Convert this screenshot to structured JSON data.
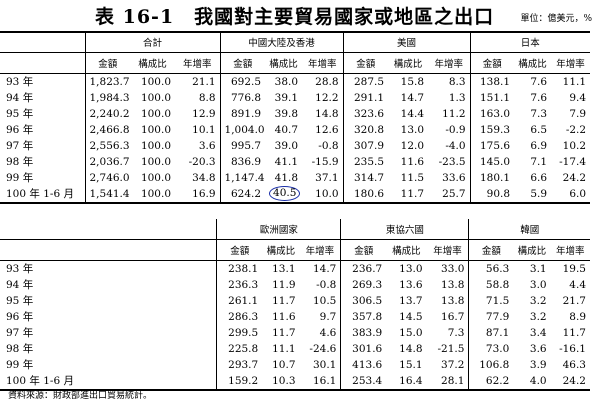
{
  "title": {
    "text": "表 16-1　我國對主要貿易國家或地區之出口",
    "unit": "單位：億美元，%"
  },
  "top": {
    "groups": [
      "合計",
      "中國大陸及香港",
      "美國",
      "日本"
    ],
    "sub": [
      "金額",
      "構成比",
      "年增率"
    ],
    "rows": [
      {
        "label": "93 年",
        "v": [
          "1,823.7",
          "100.0",
          "21.1",
          "692.5",
          "38.0",
          "28.8",
          "287.5",
          "15.8",
          "8.3",
          "138.1",
          "7.6",
          "11.1"
        ]
      },
      {
        "label": "94 年",
        "v": [
          "1,984.3",
          "100.0",
          "8.8",
          "776.8",
          "39.1",
          "12.2",
          "291.1",
          "14.7",
          "1.3",
          "151.1",
          "7.6",
          "9.4"
        ]
      },
      {
        "label": "95 年",
        "v": [
          "2,240.2",
          "100.0",
          "12.9",
          "891.9",
          "39.8",
          "14.8",
          "323.6",
          "14.4",
          "11.2",
          "163.0",
          "7.3",
          "7.9"
        ]
      },
      {
        "label": "96 年",
        "v": [
          "2,466.8",
          "100.0",
          "10.1",
          "1,004.0",
          "40.7",
          "12.6",
          "320.8",
          "13.0",
          "-0.9",
          "159.3",
          "6.5",
          "-2.2"
        ]
      },
      {
        "label": "97 年",
        "v": [
          "2,556.3",
          "100.0",
          "3.6",
          "995.7",
          "39.0",
          "-0.8",
          "307.9",
          "12.0",
          "-4.0",
          "175.6",
          "6.9",
          "10.2"
        ]
      },
      {
        "label": "98 年",
        "v": [
          "2,036.7",
          "100.0",
          "-20.3",
          "836.9",
          "41.1",
          "-15.9",
          "235.5",
          "11.6",
          "-23.5",
          "145.0",
          "7.1",
          "-17.4"
        ]
      },
      {
        "label": "99 年",
        "v": [
          "2,746.0",
          "100.0",
          "34.8",
          "1,147.4",
          "41.8",
          "37.1",
          "314.7",
          "11.5",
          "33.6",
          "180.1",
          "6.6",
          "24.2"
        ]
      },
      {
        "label": "100 年 1-6 月",
        "v": [
          "1,541.4",
          "100.0",
          "16.9",
          "624.2",
          "40.5",
          "10.0",
          "180.6",
          "11.7",
          "25.7",
          "90.8",
          "5.9",
          "6.0"
        ]
      }
    ]
  },
  "bottom": {
    "groups": [
      "歐洲國家",
      "東協六國",
      "韓國"
    ],
    "sub": [
      "金額",
      "構成比",
      "年增率"
    ],
    "rows": [
      {
        "label": "93 年",
        "v": [
          "238.1",
          "13.1",
          "14.7",
          "236.7",
          "13.0",
          "33.0",
          "56.3",
          "3.1",
          "19.5"
        ]
      },
      {
        "label": "94 年",
        "v": [
          "236.3",
          "11.9",
          "-0.8",
          "269.3",
          "13.6",
          "13.8",
          "58.8",
          "3.0",
          "4.4"
        ]
      },
      {
        "label": "95 年",
        "v": [
          "261.1",
          "11.7",
          "10.5",
          "306.5",
          "13.7",
          "13.8",
          "71.5",
          "3.2",
          "21.7"
        ]
      },
      {
        "label": "96 年",
        "v": [
          "286.3",
          "11.6",
          "9.7",
          "357.8",
          "14.5",
          "16.7",
          "77.9",
          "3.2",
          "8.9"
        ]
      },
      {
        "label": "97 年",
        "v": [
          "299.5",
          "11.7",
          "4.6",
          "383.9",
          "15.0",
          "7.3",
          "87.1",
          "3.4",
          "11.7"
        ]
      },
      {
        "label": "98 年",
        "v": [
          "225.8",
          "11.1",
          "-24.6",
          "301.6",
          "14.8",
          "-21.5",
          "73.0",
          "3.6",
          "-16.1"
        ]
      },
      {
        "label": "99 年",
        "v": [
          "293.7",
          "10.7",
          "30.1",
          "413.6",
          "15.1",
          "37.2",
          "106.8",
          "3.9",
          "46.3"
        ]
      },
      {
        "label": "100 年 1-6 月",
        "v": [
          "159.2",
          "10.3",
          "16.1",
          "253.4",
          "16.4",
          "28.1",
          "62.2",
          "4.0",
          "24.2"
        ]
      }
    ]
  },
  "source": "資料來源：財政部進出口貿易統計。",
  "highlight_color": "#1a2fa8"
}
